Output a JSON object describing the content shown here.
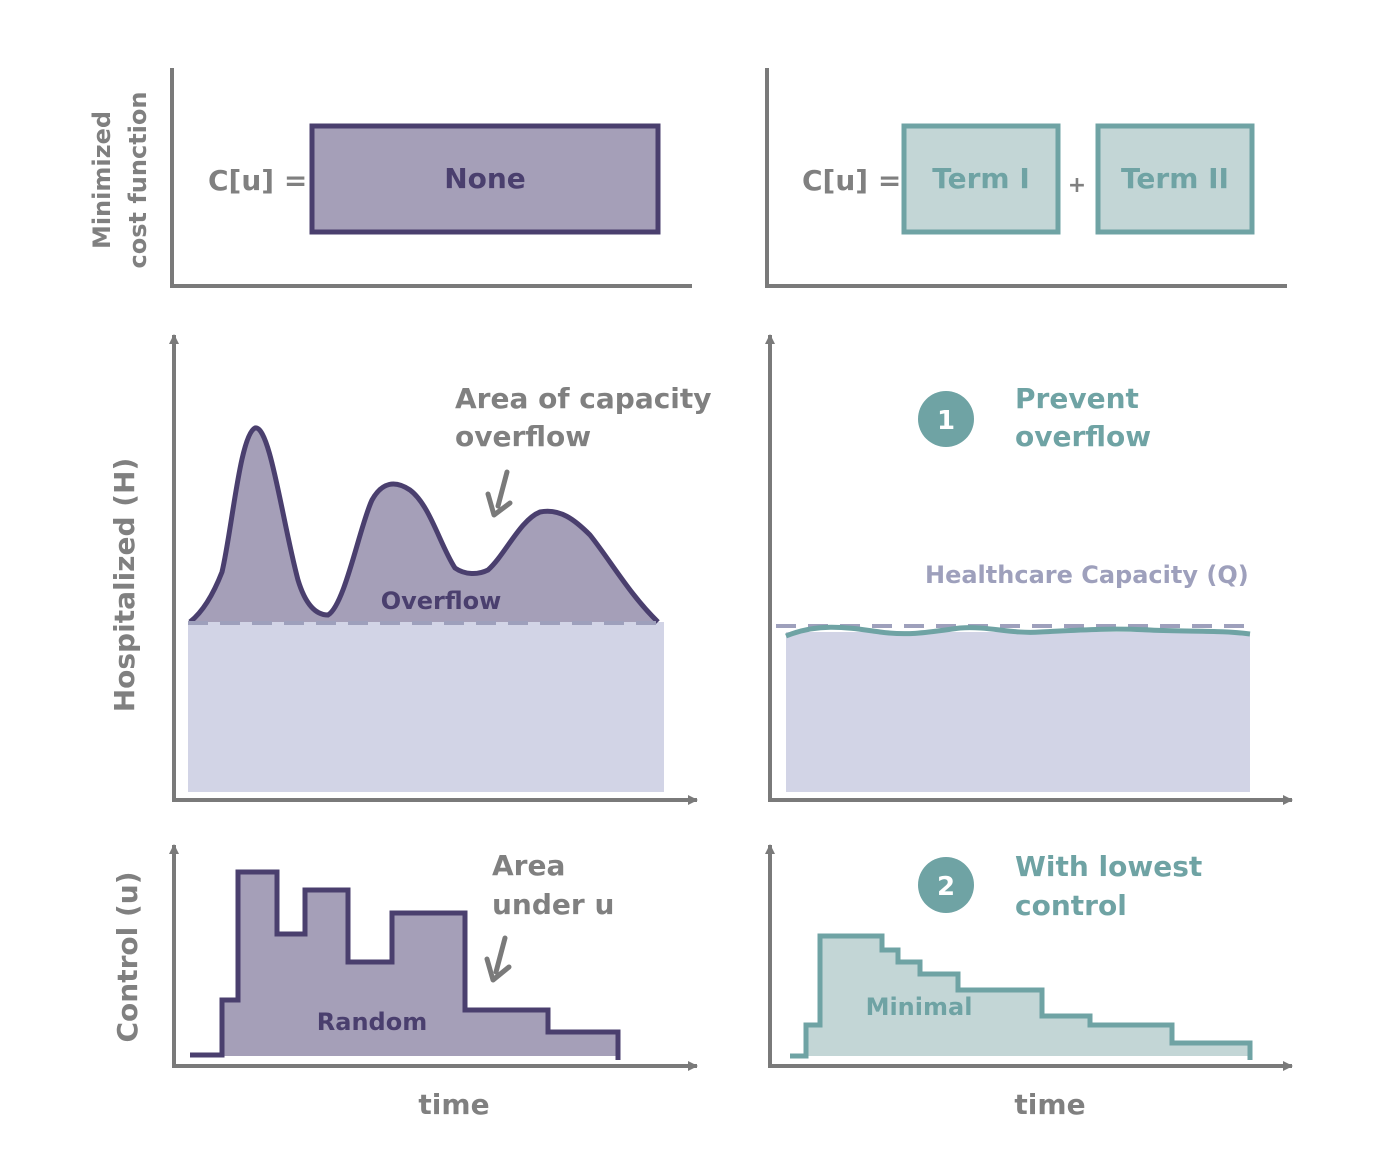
{
  "colors": {
    "axis": "#7a7a7a",
    "label": "#808080",
    "purple_dark": "#4a3f6e",
    "purple_fill": "#a59fb8",
    "capacity_fill": "#d2d4e6",
    "capacity_line": "#9ea0bc",
    "teal": "#6fa3a4",
    "teal_fill": "#c3d6d6"
  },
  "labels": {
    "cost_axis_line1": "Minimized",
    "cost_axis_line2": "cost function",
    "hospitalized_axis": "Hospitalized (H)",
    "control_axis": "Control (u)",
    "time_left": "time",
    "time_right": "time"
  },
  "left": {
    "cost_prefix": "C[u] =",
    "cost_box": "None",
    "overflow_note_line1": "Area of capacity",
    "overflow_note_line2": "overflow",
    "overflow_label": "Overflow",
    "control_note_line1": "Area",
    "control_note_line2": "under u",
    "control_label": "Random"
  },
  "right": {
    "cost_prefix": "C[u] =",
    "term1": "Term I",
    "plus": "+",
    "term2": "Term II",
    "goal1_number": "1",
    "goal1_line1": "Prevent",
    "goal1_line2": "overflow",
    "capacity_label": "Healthcare Capacity (Q)",
    "goal2_number": "2",
    "goal2_line1": "With lowest",
    "goal2_line2": "control",
    "control_label": "Minimal"
  }
}
